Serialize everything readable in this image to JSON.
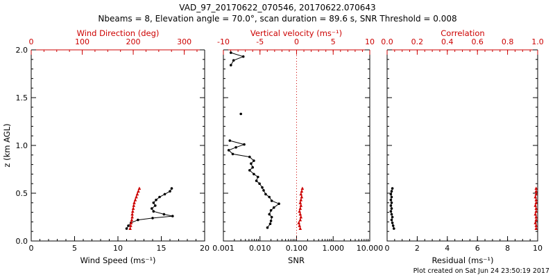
{
  "title": "VAD_97_20170622_070546, 20170622.070643",
  "subtitle": "Nbeams = 8, Elevation angle = 70.0°, scan duration = 89.6 s, SNR Threshold = 0.008",
  "footer": "Plot created on Sat Jun 24 23:50:19 2017",
  "colors": {
    "foreground": "#000000",
    "accent_red": "#cc0000",
    "background": "#ffffff"
  },
  "chart_data": {
    "type": "line",
    "ylabel": "z (km AGL)",
    "ylim": [
      0,
      2
    ],
    "yticks": [
      0,
      0.5,
      1.0,
      1.5,
      2.0
    ],
    "ytick_labels": [
      "0.0",
      "0.5",
      "1.0",
      "1.5",
      "2.0"
    ],
    "grid": false,
    "legend": "none",
    "panels": [
      {
        "id": "wind",
        "bottom_axis": {
          "label": "Wind Speed (ms⁻¹)",
          "range": [
            0,
            20
          ],
          "ticks": [
            0,
            5,
            10,
            15,
            20
          ],
          "tick_labels": [
            "0",
            "5",
            "10",
            "15",
            "20"
          ],
          "minor": 5,
          "color": "#000000"
        },
        "top_axis": {
          "label": "Wind Direction (deg)",
          "range": [
            0,
            340
          ],
          "ticks": [
            0,
            100,
            200,
            300
          ],
          "tick_labels": [
            "0",
            "100",
            "200",
            "300"
          ],
          "minor": 4,
          "color": "#cc0000"
        },
        "series": [
          {
            "name": "wind-speed",
            "axis": "bottom",
            "color": "#000000",
            "marker": "circle",
            "segments": [
              [
                [
                  11.0,
                  0.13
                ],
                [
                  11.2,
                  0.16
                ],
                [
                  11.5,
                  0.19
                ],
                [
                  12.3,
                  0.22
                ],
                [
                  14.0,
                  0.24
                ],
                [
                  16.3,
                  0.26
                ],
                [
                  15.3,
                  0.28
                ],
                [
                  14.1,
                  0.31
                ],
                [
                  13.9,
                  0.34
                ],
                [
                  14.3,
                  0.37
                ],
                [
                  14.1,
                  0.4
                ],
                [
                  14.4,
                  0.43
                ],
                [
                  14.8,
                  0.46
                ],
                [
                  15.4,
                  0.49
                ],
                [
                  16.0,
                  0.52
                ],
                [
                  16.2,
                  0.55
                ]
              ]
            ]
          },
          {
            "name": "wind-direction",
            "axis": "top",
            "color": "#cc0000",
            "marker": "triangle",
            "segments": [
              [
                [
                  194,
                  0.13
                ],
                [
                  195,
                  0.16
                ],
                [
                  196,
                  0.19
                ],
                [
                  197,
                  0.22
                ],
                [
                  198,
                  0.25
                ],
                [
                  198,
                  0.28
                ],
                [
                  199,
                  0.31
                ],
                [
                  200,
                  0.34
                ],
                [
                  201,
                  0.37
                ],
                [
                  202,
                  0.4
                ],
                [
                  204,
                  0.43
                ],
                [
                  206,
                  0.46
                ],
                [
                  208,
                  0.49
                ],
                [
                  210,
                  0.52
                ],
                [
                  212,
                  0.55
                ]
              ]
            ]
          }
        ]
      },
      {
        "id": "snr",
        "bottom_axis": {
          "label": "SNR",
          "range": [
            0.001,
            10
          ],
          "scale": "log",
          "ticks": [
            0.001,
            0.01,
            0.1,
            1,
            10
          ],
          "tick_labels": [
            "0.001",
            "0.010",
            "0.100",
            "1.000",
            "10.000"
          ],
          "color": "#000000"
        },
        "top_axis": {
          "label": "Vertical velocity (ms⁻¹)",
          "range": [
            -10,
            10
          ],
          "ticks": [
            -10,
            -5,
            0,
            5,
            10
          ],
          "tick_labels": [
            "-10",
            "-5",
            "0",
            "5",
            "10"
          ],
          "minor": 5,
          "color": "#cc0000"
        },
        "zero_line": {
          "axis": "top",
          "value": 0,
          "color": "#cc0000",
          "style": "dotted"
        },
        "series": [
          {
            "name": "snr",
            "axis": "bottom",
            "color": "#000000",
            "marker": "circle",
            "segments": [
              [
                [
                  0.0016,
                  1.97
                ],
                [
                  0.0035,
                  1.93
                ],
                [
                  0.0019,
                  1.89
                ],
                [
                  0.0016,
                  1.84
                ]
              ],
              [
                [
                  0.003,
                  1.33
                ]
              ],
              [
                [
                  0.0015,
                  1.05
                ],
                [
                  0.0037,
                  1.01
                ],
                [
                  0.0022,
                  0.98
                ],
                [
                  0.0014,
                  0.95
                ],
                [
                  0.0018,
                  0.91
                ],
                [
                  0.0052,
                  0.88
                ],
                [
                  0.0068,
                  0.84
                ],
                [
                  0.0057,
                  0.81
                ],
                [
                  0.0063,
                  0.77
                ],
                [
                  0.0052,
                  0.74
                ],
                [
                  0.0068,
                  0.7
                ],
                [
                  0.0088,
                  0.67
                ],
                [
                  0.008,
                  0.63
                ],
                [
                  0.0097,
                  0.6
                ],
                [
                  0.0115,
                  0.56
                ],
                [
                  0.0126,
                  0.53
                ],
                [
                  0.0143,
                  0.49
                ],
                [
                  0.018,
                  0.46
                ],
                [
                  0.021,
                  0.42
                ],
                [
                  0.033,
                  0.39
                ],
                [
                  0.024,
                  0.35
                ],
                [
                  0.02,
                  0.32
                ],
                [
                  0.018,
                  0.28
                ],
                [
                  0.021,
                  0.25
                ],
                [
                  0.02,
                  0.21
                ],
                [
                  0.019,
                  0.18
                ],
                [
                  0.016,
                  0.14
                ]
              ]
            ]
          },
          {
            "name": "vertical-velocity",
            "axis": "top",
            "color": "#cc0000",
            "marker": "triangle",
            "segments": [
              [
                [
                  0.5,
                  0.13
                ],
                [
                  0.4,
                  0.16
                ],
                [
                  0.3,
                  0.19
                ],
                [
                  0.5,
                  0.22
                ],
                [
                  0.6,
                  0.25
                ],
                [
                  0.5,
                  0.28
                ],
                [
                  0.4,
                  0.31
                ],
                [
                  0.5,
                  0.34
                ],
                [
                  0.6,
                  0.37
                ],
                [
                  0.5,
                  0.4
                ],
                [
                  0.6,
                  0.43
                ],
                [
                  0.7,
                  0.46
                ],
                [
                  0.6,
                  0.49
                ],
                [
                  0.7,
                  0.52
                ],
                [
                  0.8,
                  0.55
                ]
              ]
            ]
          }
        ]
      },
      {
        "id": "residual",
        "bottom_axis": {
          "label": "Residual (ms⁻¹)",
          "range": [
            0,
            10
          ],
          "ticks": [
            0,
            2,
            4,
            6,
            8,
            10
          ],
          "tick_labels": [
            "0",
            "2",
            "4",
            "6",
            "8",
            "10"
          ],
          "minor": 4,
          "color": "#000000"
        },
        "top_axis": {
          "label": "Correlation",
          "range": [
            0,
            1
          ],
          "ticks": [
            0,
            0.2,
            0.4,
            0.6,
            0.8,
            1
          ],
          "tick_labels": [
            "0.0",
            "0.2",
            "0.4",
            "0.6",
            "0.8",
            "1.0"
          ],
          "minor": 4,
          "color": "#cc0000"
        },
        "series": [
          {
            "name": "residual",
            "axis": "bottom",
            "color": "#000000",
            "marker": "circle",
            "segments": [
              [
                [
                  0.45,
                  0.13
                ],
                [
                  0.4,
                  0.16
                ],
                [
                  0.35,
                  0.19
                ],
                [
                  0.3,
                  0.22
                ],
                [
                  0.35,
                  0.25
                ],
                [
                  0.3,
                  0.28
                ],
                [
                  0.25,
                  0.31
                ],
                [
                  0.3,
                  0.34
                ],
                [
                  0.25,
                  0.37
                ],
                [
                  0.3,
                  0.4
                ],
                [
                  0.25,
                  0.43
                ],
                [
                  0.3,
                  0.46
                ],
                [
                  0.25,
                  0.49
                ],
                [
                  0.3,
                  0.52
                ],
                [
                  0.35,
                  0.55
                ]
              ]
            ]
          },
          {
            "name": "correlation",
            "axis": "top",
            "color": "#cc0000",
            "marker": "triangle",
            "segments": [
              [
                [
                  0.99,
                  0.13
                ],
                [
                  0.99,
                  0.16
                ],
                [
                  0.985,
                  0.19
                ],
                [
                  0.99,
                  0.22
                ],
                [
                  0.99,
                  0.25
                ],
                [
                  0.985,
                  0.28
                ],
                [
                  0.99,
                  0.31
                ],
                [
                  0.99,
                  0.34
                ],
                [
                  0.985,
                  0.37
                ],
                [
                  0.99,
                  0.4
                ],
                [
                  0.99,
                  0.43
                ],
                [
                  0.985,
                  0.46
                ],
                [
                  0.99,
                  0.49
                ],
                [
                  0.99,
                  0.52
                ],
                [
                  0.99,
                  0.55
                ]
              ]
            ]
          }
        ]
      }
    ]
  }
}
